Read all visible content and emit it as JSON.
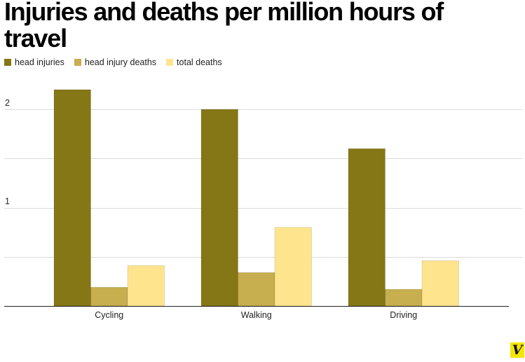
{
  "chart_data": {
    "type": "bar",
    "title": "Injuries and deaths per million hours of travel",
    "categories": [
      "Cycling",
      "Walking",
      "Driving"
    ],
    "series": [
      {
        "name": "head injuries",
        "color": "#857716",
        "values": [
          2.2,
          2.0,
          1.6
        ]
      },
      {
        "name": "head injury deaths",
        "color": "#c7ae4f",
        "values": [
          0.19,
          0.34,
          0.17
        ]
      },
      {
        "name": "total deaths",
        "color": "#fde48d",
        "values": [
          0.41,
          0.8,
          0.46
        ]
      }
    ],
    "y_ticks": [
      {
        "value": 1,
        "label": "1"
      },
      {
        "value": 2,
        "label": "2"
      }
    ],
    "ylim": [
      0,
      2.4
    ],
    "grid": true,
    "legend_position": "top-left",
    "xlabel": "",
    "ylabel": ""
  },
  "logo": {
    "text": "V",
    "icon": "vox-logo-icon",
    "color": "#f5e600"
  }
}
